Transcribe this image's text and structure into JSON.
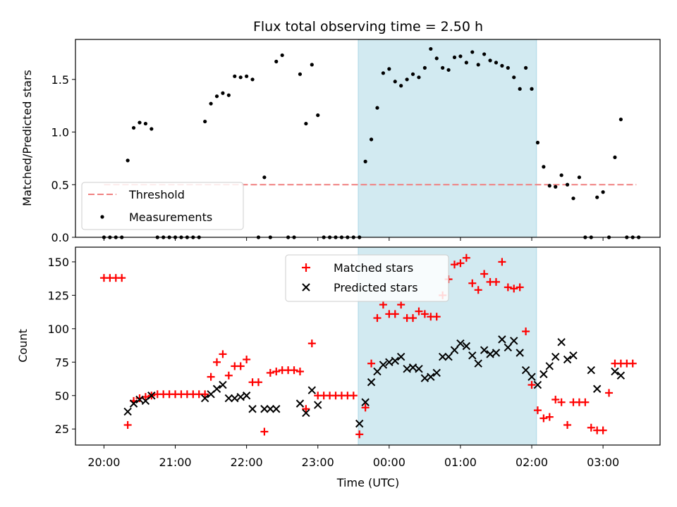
{
  "chart_data": [
    {
      "type": "scatter",
      "title": "Flux total observing time = 2.50 h",
      "xlabel": "",
      "ylabel": "Matched/Predicted stars",
      "xlim": [
        "19:36",
        "03:48"
      ],
      "ylim": [
        0,
        1.88
      ],
      "y_ticks": [
        "0.0",
        "0.5",
        "1.0",
        "1.5"
      ],
      "highlight_span": [
        "23:34",
        "02:04"
      ],
      "highlight_color": "#add8e6",
      "threshold": {
        "name": "Threshold",
        "value": 0.5,
        "x_start": "20:00",
        "x_end": "03:28",
        "color": "#f08080"
      },
      "legend_position": "lower-left",
      "series": [
        {
          "name": "Measurements",
          "color": "#000000",
          "points": [
            [
              "20:00",
              0
            ],
            [
              "20:05",
              0
            ],
            [
              "20:10",
              0
            ],
            [
              "20:15",
              0
            ],
            [
              "20:20",
              0.73
            ],
            [
              "20:25",
              1.04
            ],
            [
              "20:30",
              1.09
            ],
            [
              "20:35",
              1.08
            ],
            [
              "20:40",
              1.03
            ],
            [
              "20:45",
              0
            ],
            [
              "20:50",
              0
            ],
            [
              "20:55",
              0
            ],
            [
              "21:00",
              0
            ],
            [
              "21:05",
              0
            ],
            [
              "21:10",
              0
            ],
            [
              "21:15",
              0
            ],
            [
              "21:20",
              0
            ],
            [
              "21:25",
              1.1
            ],
            [
              "21:30",
              1.27
            ],
            [
              "21:35",
              1.34
            ],
            [
              "21:40",
              1.37
            ],
            [
              "21:45",
              1.35
            ],
            [
              "21:50",
              1.53
            ],
            [
              "21:55",
              1.52
            ],
            [
              "22:00",
              1.53
            ],
            [
              "22:05",
              1.5
            ],
            [
              "22:10",
              0
            ],
            [
              "22:15",
              0.57
            ],
            [
              "22:20",
              0
            ],
            [
              "22:25",
              1.67
            ],
            [
              "22:30",
              1.73
            ],
            [
              "22:35",
              0
            ],
            [
              "22:40",
              0
            ],
            [
              "22:45",
              1.55
            ],
            [
              "22:50",
              1.08
            ],
            [
              "22:55",
              1.64
            ],
            [
              "23:00",
              1.16
            ],
            [
              "23:05",
              0
            ],
            [
              "23:10",
              0
            ],
            [
              "23:15",
              0
            ],
            [
              "23:20",
              0
            ],
            [
              "23:25",
              0
            ],
            [
              "23:30",
              0
            ],
            [
              "23:35",
              0
            ],
            [
              "23:40",
              0.72
            ],
            [
              "23:45",
              0.93
            ],
            [
              "23:50",
              1.23
            ],
            [
              "23:55",
              1.56
            ],
            [
              "00:00",
              1.6
            ],
            [
              "00:05",
              1.48
            ],
            [
              "00:10",
              1.44
            ],
            [
              "00:15",
              1.5
            ],
            [
              "00:20",
              1.55
            ],
            [
              "00:25",
              1.52
            ],
            [
              "00:30",
              1.61
            ],
            [
              "00:35",
              1.79
            ],
            [
              "00:40",
              1.7
            ],
            [
              "00:45",
              1.61
            ],
            [
              "00:50",
              1.59
            ],
            [
              "00:55",
              1.71
            ],
            [
              "01:00",
              1.72
            ],
            [
              "01:05",
              1.66
            ],
            [
              "01:10",
              1.76
            ],
            [
              "01:15",
              1.64
            ],
            [
              "01:20",
              1.74
            ],
            [
              "01:25",
              1.68
            ],
            [
              "01:30",
              1.66
            ],
            [
              "01:35",
              1.63
            ],
            [
              "01:40",
              1.61
            ],
            [
              "01:45",
              1.52
            ],
            [
              "01:50",
              1.41
            ],
            [
              "01:55",
              1.61
            ],
            [
              "02:00",
              1.41
            ],
            [
              "02:05",
              0.9
            ],
            [
              "02:10",
              0.67
            ],
            [
              "02:15",
              0.49
            ],
            [
              "02:20",
              0.48
            ],
            [
              "02:25",
              0.59
            ],
            [
              "02:30",
              0.5
            ],
            [
              "02:35",
              0.37
            ],
            [
              "02:40",
              0.57
            ],
            [
              "02:45",
              0
            ],
            [
              "02:50",
              0
            ],
            [
              "02:55",
              0.38
            ],
            [
              "03:00",
              0.43
            ],
            [
              "03:05",
              0
            ],
            [
              "03:10",
              0.76
            ],
            [
              "03:15",
              1.12
            ],
            [
              "03:20",
              0
            ],
            [
              "03:25",
              0
            ],
            [
              "03:30",
              0
            ]
          ]
        }
      ]
    },
    {
      "type": "scatter",
      "title": "",
      "xlabel": "Time (UTC)",
      "ylabel": "Count",
      "xlim": [
        "19:36",
        "03:48"
      ],
      "ylim": [
        13,
        161
      ],
      "x_ticks": [
        "20:00",
        "21:00",
        "22:00",
        "23:00",
        "00:00",
        "01:00",
        "02:00",
        "03:00"
      ],
      "y_ticks": [
        "25",
        "50",
        "75",
        "100",
        "125",
        "150"
      ],
      "highlight_span": [
        "23:34",
        "02:04"
      ],
      "highlight_color": "#add8e6",
      "legend_position": "upper-center",
      "series": [
        {
          "name": "Matched stars",
          "color": "#ff0000",
          "marker": "plus",
          "points": [
            [
              "20:00",
              138
            ],
            [
              "20:05",
              138
            ],
            [
              "20:10",
              138
            ],
            [
              "20:15",
              138
            ],
            [
              "20:20",
              28
            ],
            [
              "20:25",
              46
            ],
            [
              "20:30",
              48
            ],
            [
              "20:35",
              49
            ],
            [
              "20:40",
              50
            ],
            [
              "20:45",
              51
            ],
            [
              "20:50",
              51
            ],
            [
              "20:55",
              51
            ],
            [
              "21:00",
              51
            ],
            [
              "21:05",
              51
            ],
            [
              "21:10",
              51
            ],
            [
              "21:15",
              51
            ],
            [
              "21:20",
              51
            ],
            [
              "21:25",
              51
            ],
            [
              "21:30",
              64
            ],
            [
              "21:35",
              75
            ],
            [
              "21:40",
              81
            ],
            [
              "21:45",
              65
            ],
            [
              "21:50",
              72
            ],
            [
              "21:55",
              72
            ],
            [
              "22:00",
              77
            ],
            [
              "22:05",
              60
            ],
            [
              "22:10",
              60
            ],
            [
              "22:15",
              23
            ],
            [
              "22:20",
              67
            ],
            [
              "22:25",
              68
            ],
            [
              "22:30",
              69
            ],
            [
              "22:35",
              69
            ],
            [
              "22:40",
              69
            ],
            [
              "22:45",
              68
            ],
            [
              "22:50",
              40
            ],
            [
              "22:55",
              89
            ],
            [
              "23:00",
              50
            ],
            [
              "23:05",
              50
            ],
            [
              "23:10",
              50
            ],
            [
              "23:15",
              50
            ],
            [
              "23:20",
              50
            ],
            [
              "23:25",
              50
            ],
            [
              "23:30",
              50
            ],
            [
              "23:35",
              21
            ],
            [
              "23:40",
              41
            ],
            [
              "23:45",
              74
            ],
            [
              "23:50",
              108
            ],
            [
              "23:55",
              118
            ],
            [
              "00:00",
              111
            ],
            [
              "00:05",
              111
            ],
            [
              "00:10",
              118
            ],
            [
              "00:15",
              108
            ],
            [
              "00:20",
              108
            ],
            [
              "00:25",
              113
            ],
            [
              "00:30",
              111
            ],
            [
              "00:35",
              109
            ],
            [
              "00:40",
              109
            ],
            [
              "00:45",
              125
            ],
            [
              "00:50",
              137
            ],
            [
              "00:55",
              148
            ],
            [
              "01:00",
              149
            ],
            [
              "01:05",
              153
            ],
            [
              "01:10",
              134
            ],
            [
              "01:15",
              129
            ],
            [
              "01:20",
              141
            ],
            [
              "01:25",
              135
            ],
            [
              "01:30",
              135
            ],
            [
              "01:35",
              150
            ],
            [
              "01:40",
              131
            ],
            [
              "01:45",
              130
            ],
            [
              "01:50",
              131
            ],
            [
              "01:55",
              98
            ],
            [
              "02:00",
              58
            ],
            [
              "02:05",
              39
            ],
            [
              "02:10",
              33
            ],
            [
              "02:15",
              34
            ],
            [
              "02:20",
              47
            ],
            [
              "02:25",
              45
            ],
            [
              "02:30",
              28
            ],
            [
              "02:35",
              45
            ],
            [
              "02:40",
              45
            ],
            [
              "02:45",
              45
            ],
            [
              "02:50",
              26
            ],
            [
              "02:55",
              24
            ],
            [
              "03:00",
              24
            ],
            [
              "03:05",
              52
            ],
            [
              "03:10",
              74
            ],
            [
              "03:15",
              74
            ],
            [
              "03:20",
              74
            ],
            [
              "03:25",
              74
            ]
          ]
        },
        {
          "name": "Predicted stars",
          "color": "#000000",
          "marker": "x",
          "points": [
            [
              "20:20",
              38
            ],
            [
              "20:25",
              44
            ],
            [
              "20:30",
              47
            ],
            [
              "20:35",
              46
            ],
            [
              "20:40",
              50
            ],
            [
              "21:25",
              48
            ],
            [
              "21:30",
              51
            ],
            [
              "21:35",
              55
            ],
            [
              "21:40",
              58
            ],
            [
              "21:45",
              48
            ],
            [
              "21:50",
              48
            ],
            [
              "21:55",
              49
            ],
            [
              "22:00",
              50
            ],
            [
              "22:05",
              40
            ],
            [
              "22:15",
              40
            ],
            [
              "22:20",
              40
            ],
            [
              "22:25",
              40
            ],
            [
              "22:45",
              44
            ],
            [
              "22:50",
              37
            ],
            [
              "22:55",
              54
            ],
            [
              "23:00",
              43
            ],
            [
              "23:35",
              29
            ],
            [
              "23:40",
              45
            ],
            [
              "23:45",
              60
            ],
            [
              "23:50",
              68
            ],
            [
              "23:55",
              73
            ],
            [
              "00:00",
              75
            ],
            [
              "00:05",
              76
            ],
            [
              "00:10",
              79
            ],
            [
              "00:15",
              70
            ],
            [
              "00:20",
              71
            ],
            [
              "00:25",
              70
            ],
            [
              "00:30",
              63
            ],
            [
              "00:35",
              64
            ],
            [
              "00:40",
              67
            ],
            [
              "00:45",
              79
            ],
            [
              "00:50",
              79
            ],
            [
              "00:55",
              84
            ],
            [
              "01:00",
              89
            ],
            [
              "01:05",
              87
            ],
            [
              "01:10",
              80
            ],
            [
              "01:15",
              74
            ],
            [
              "01:20",
              84
            ],
            [
              "01:25",
              81
            ],
            [
              "01:30",
              82
            ],
            [
              "01:35",
              92
            ],
            [
              "01:40",
              86
            ],
            [
              "01:45",
              91
            ],
            [
              "01:50",
              82
            ],
            [
              "01:55",
              69
            ],
            [
              "02:00",
              64
            ],
            [
              "02:05",
              58
            ],
            [
              "02:10",
              66
            ],
            [
              "02:15",
              72
            ],
            [
              "02:20",
              79
            ],
            [
              "02:25",
              90
            ],
            [
              "02:30",
              77
            ],
            [
              "02:35",
              80
            ],
            [
              "02:50",
              69
            ],
            [
              "02:55",
              55
            ],
            [
              "03:10",
              68
            ],
            [
              "03:15",
              65
            ]
          ]
        }
      ]
    }
  ]
}
